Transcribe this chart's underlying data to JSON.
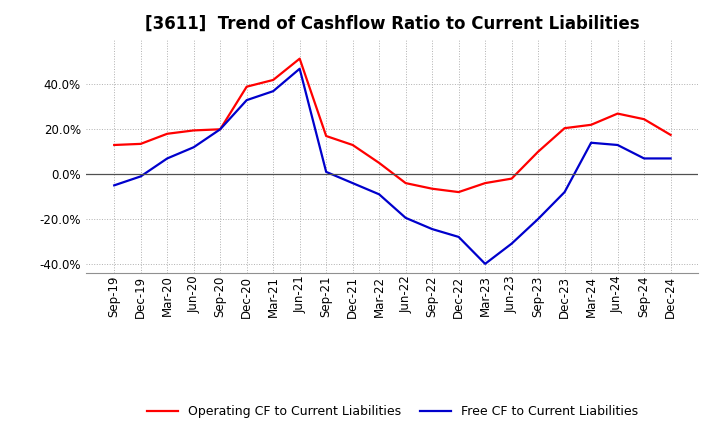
{
  "title": "[3611]  Trend of Cashflow Ratio to Current Liabilities",
  "x_labels": [
    "Sep-19",
    "Dec-19",
    "Mar-20",
    "Jun-20",
    "Sep-20",
    "Dec-20",
    "Mar-21",
    "Jun-21",
    "Sep-21",
    "Dec-21",
    "Mar-22",
    "Jun-22",
    "Sep-22",
    "Dec-22",
    "Mar-23",
    "Jun-23",
    "Sep-23",
    "Dec-23",
    "Mar-24",
    "Jun-24",
    "Sep-24",
    "Dec-24"
  ],
  "operating_cf": [
    0.13,
    0.135,
    0.18,
    0.195,
    0.2,
    0.39,
    0.42,
    0.515,
    0.17,
    0.13,
    0.05,
    -0.04,
    -0.065,
    -0.08,
    -0.04,
    -0.02,
    0.1,
    0.205,
    0.22,
    0.27,
    0.245,
    0.175
  ],
  "free_cf": [
    -0.05,
    -0.01,
    0.07,
    0.12,
    0.2,
    0.33,
    0.37,
    0.47,
    0.01,
    -0.04,
    -0.09,
    -0.195,
    -0.245,
    -0.28,
    -0.4,
    -0.31,
    -0.2,
    -0.08,
    0.14,
    0.13,
    0.07,
    0.07
  ],
  "operating_color": "#ff0000",
  "free_color": "#0000cc",
  "ylim": [
    -0.44,
    0.6
  ],
  "yticks": [
    -0.4,
    -0.2,
    0.0,
    0.2,
    0.4
  ],
  "background_color": "#ffffff",
  "plot_background": "#ffffff",
  "grid_color": "#b0b0b0",
  "legend_operating": "Operating CF to Current Liabilities",
  "legend_free": "Free CF to Current Liabilities",
  "title_fontsize": 12,
  "axis_fontsize": 8.5,
  "legend_fontsize": 9
}
